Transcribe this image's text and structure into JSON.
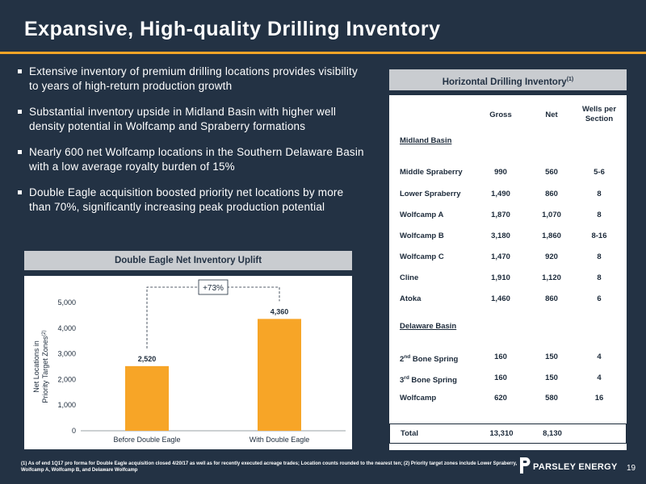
{
  "slide": {
    "title": "Expansive, High-quality Drilling Inventory",
    "bullets": [
      "Extensive inventory of premium drilling locations provides visibility to years of high-return production growth",
      "Substantial inventory upside in Midland Basin with higher well density potential in Wolfcamp and Spraberry formations",
      "Nearly 600 net Wolfcamp locations in the Southern Delaware Basin with a low average royalty burden of 15%",
      "Double Eagle acquisition boosted priority net locations by more than 70%, significantly increasing peak production potential"
    ],
    "footnote": "(1) As of end 1Q17 pro forma for Double Eagle acquisition closed 4/20/17 as well as for recently executed acreage trades; Location counts rounded to the nearest ten; (2) Priority target zones include Lower Spraberry, Wolfcamp A, Wolfcamp B, and Delaware Wolfcamp",
    "logo_text": "PARSLEY ENERGY",
    "page_number": "19"
  },
  "chart_panel": {
    "header": "Double Eagle Net Inventory Uplift",
    "uplift_label": "+73%"
  },
  "chart_data": {
    "type": "bar",
    "categories": [
      "Before Double Eagle",
      "With Double Eagle"
    ],
    "values": [
      2520,
      4360
    ],
    "value_labels": [
      "2,520",
      "4,360"
    ],
    "ylabel_line1": "Net Locations in",
    "ylabel_line2": "Priority Target Zones",
    "ylabel_sup": "(2)",
    "ylim": [
      0,
      5000
    ],
    "yticks": [
      0,
      1000,
      2000,
      3000,
      4000,
      5000
    ],
    "ytick_labels": [
      "0",
      "1,000",
      "2,000",
      "3,000",
      "4,000",
      "5,000"
    ],
    "grid": false,
    "bar_color": "#f7a527"
  },
  "inventory": {
    "header": "Horizontal Drilling Inventory",
    "header_sup": "(1)",
    "columns": {
      "gross": "Gross",
      "net": "Net",
      "wells_line1": "Wells per",
      "wells_line2": "Section"
    },
    "midland": {
      "title": "Midland Basin",
      "rows": [
        {
          "name": "Middle Spraberry",
          "gross": "990",
          "net": "560",
          "wells": "5-6"
        },
        {
          "name": "Lower Spraberry",
          "gross": "1,490",
          "net": "860",
          "wells": "8"
        },
        {
          "name": "Wolfcamp A",
          "gross": "1,870",
          "net": "1,070",
          "wells": "8"
        },
        {
          "name": "Wolfcamp B",
          "gross": "3,180",
          "net": "1,860",
          "wells": "8-16"
        },
        {
          "name": "Wolfcamp C",
          "gross": "1,470",
          "net": "920",
          "wells": "8"
        },
        {
          "name": "Cline",
          "gross": "1,910",
          "net": "1,120",
          "wells": "8"
        },
        {
          "name": "Atoka",
          "gross": "1,460",
          "net": "860",
          "wells": "6"
        }
      ]
    },
    "delaware": {
      "title": "Delaware Basin",
      "rows": [
        {
          "name_num": "2",
          "name_sup": "nd",
          "name_rest": " Bone Spring",
          "gross": "160",
          "net": "150",
          "wells": "4"
        },
        {
          "name_num": "3",
          "name_sup": "rd",
          "name_rest": " Bone Spring",
          "gross": "160",
          "net": "150",
          "wells": "4"
        },
        {
          "name": "Wolfcamp",
          "gross": "620",
          "net": "580",
          "wells": "16"
        }
      ]
    },
    "total": {
      "label": "Total",
      "gross": "13,310",
      "net": "8,130"
    },
    "colors": {
      "header_bg": "#c9ccd0",
      "text": "#1c2a3a"
    }
  }
}
